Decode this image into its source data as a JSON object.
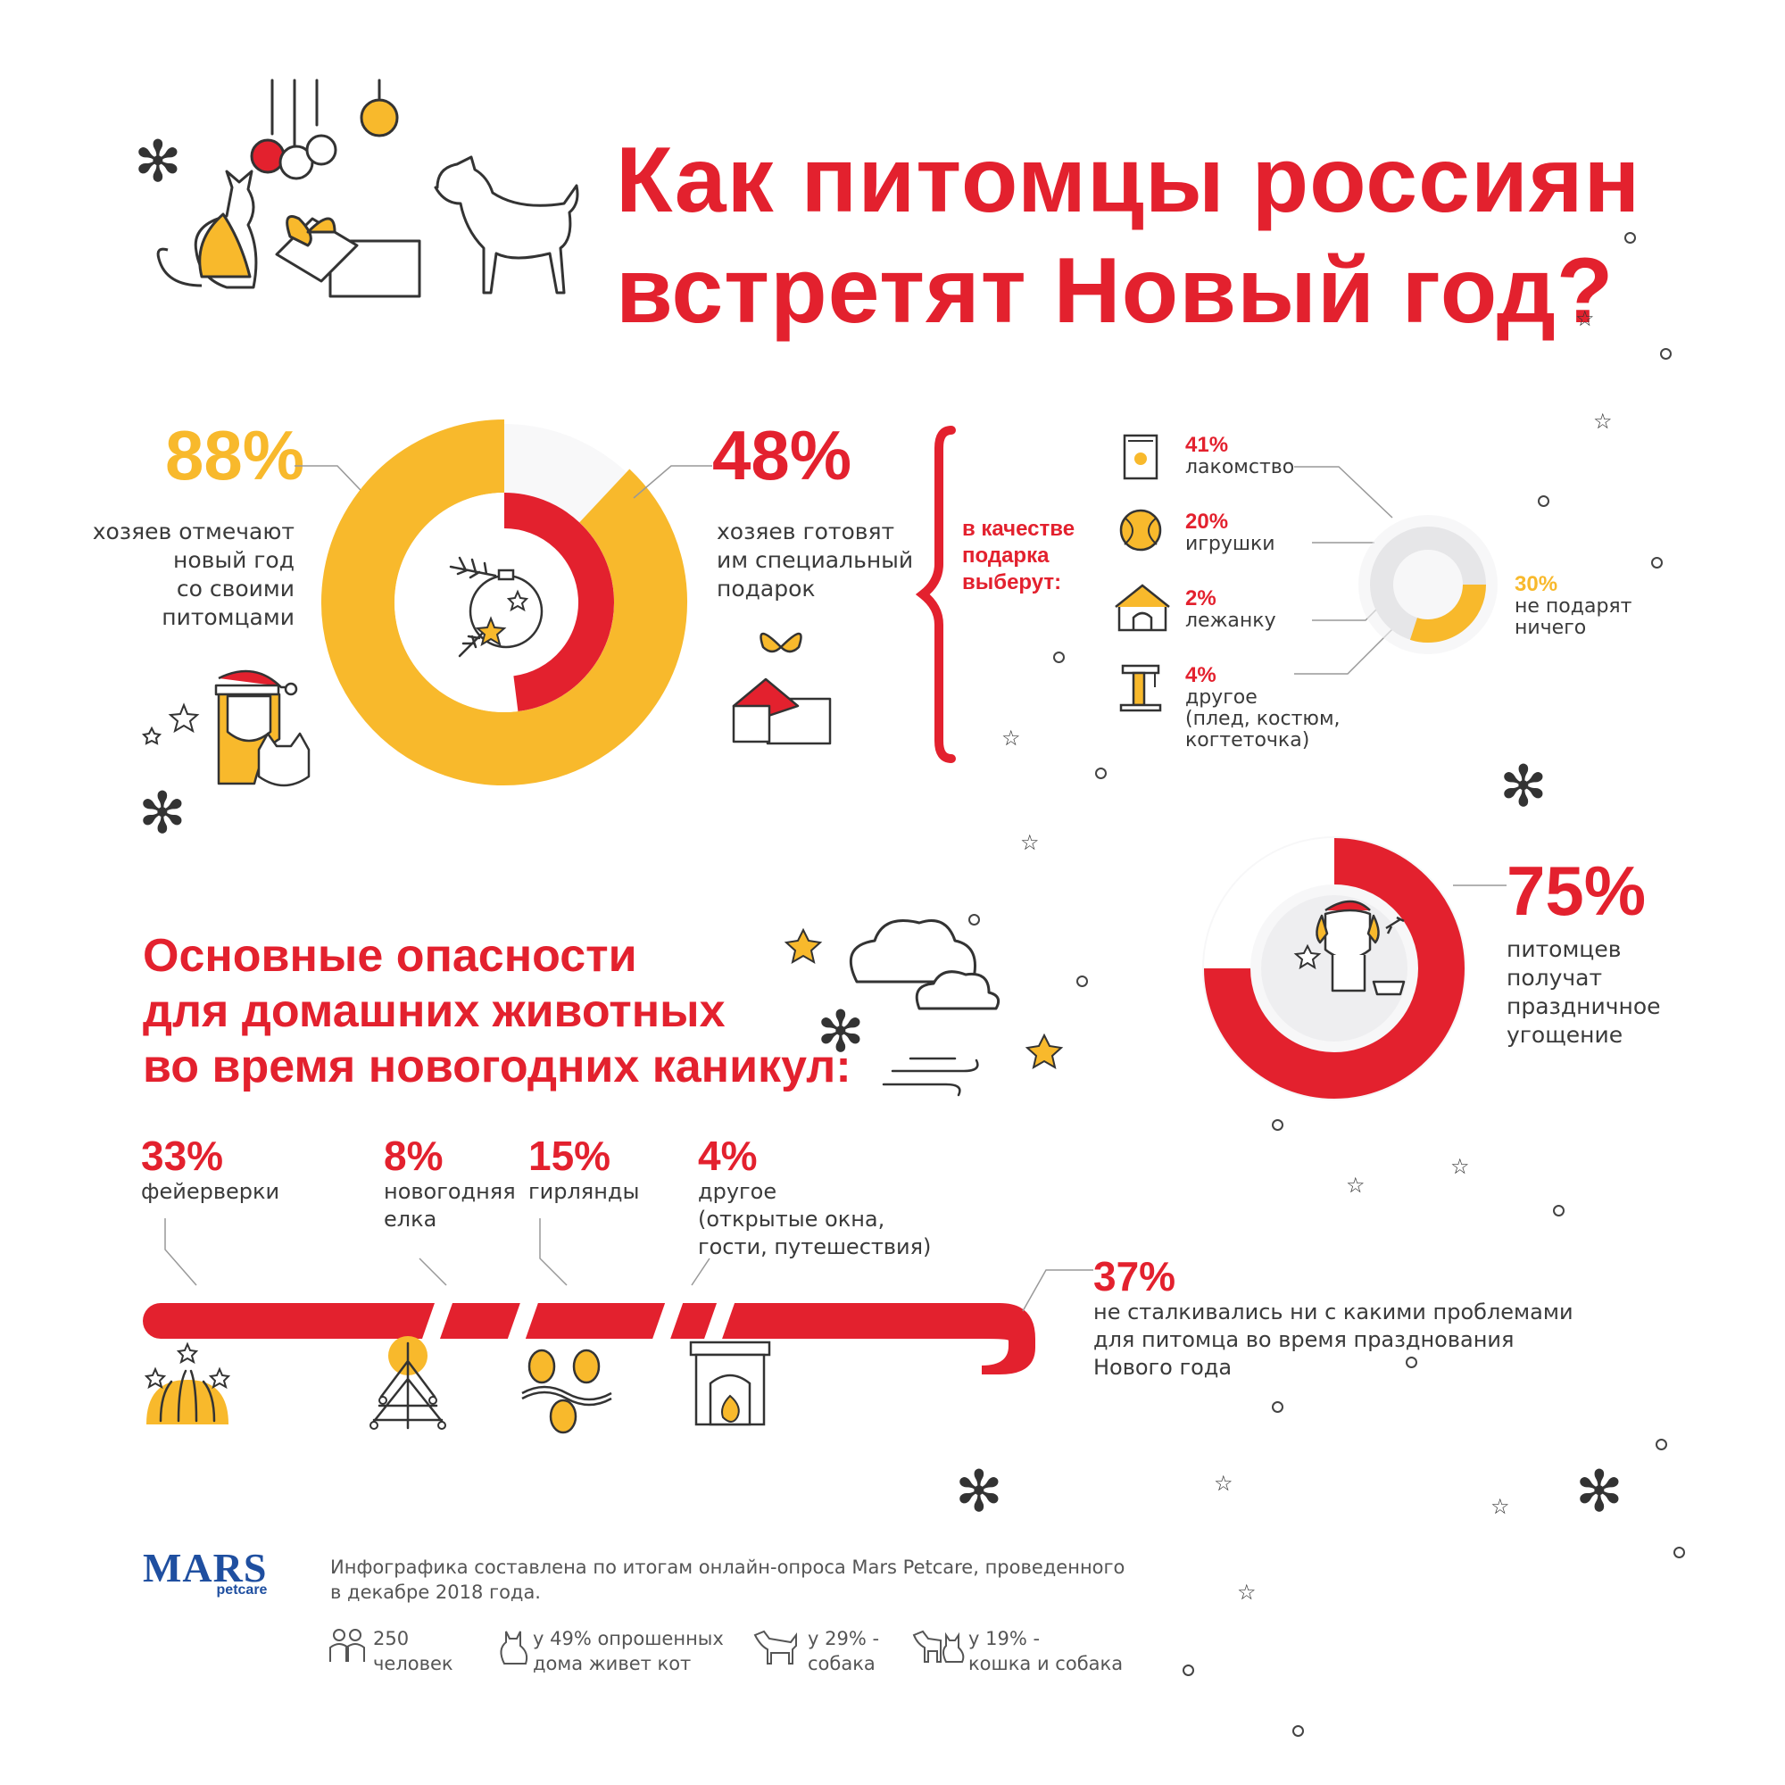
{
  "title": {
    "line1": "Как питомцы россиян",
    "line2": "встретят Новый год?"
  },
  "stat_celebrate": {
    "value": "88%",
    "line1": "хозяев отмечают",
    "line2": "новый год",
    "line3": "со своими",
    "line4": "питомцами"
  },
  "stat_gift": {
    "value": "48%",
    "line1": "хозяев готовят",
    "line2": "им специальный",
    "line3": "подарок"
  },
  "gift_choice": {
    "header_line1": "в качестве",
    "header_line2": "подарка",
    "header_line3": "выберут:",
    "items": [
      {
        "value": "41%",
        "label": "лакомство",
        "icon": "treat-bag-icon"
      },
      {
        "value": "20%",
        "label": "игрушки",
        "icon": "ball-icon"
      },
      {
        "value": "2%",
        "label": "лежанку",
        "icon": "doghouse-icon"
      },
      {
        "value": "4%",
        "label": "другое",
        "label2": "(плед, костюм,",
        "label3": "когтеточка)",
        "icon": "scratching-post-icon"
      }
    ],
    "no_gift": {
      "value": "30%",
      "line1": "не подарят",
      "line2": "ничего"
    }
  },
  "stat_treat": {
    "value": "75%",
    "line1": "питомцев",
    "line2": "получат",
    "line3": "праздничное",
    "line4": "угощение"
  },
  "dangers": {
    "title_line1": "Основные опасности",
    "title_line2": "для домашних животных",
    "title_line3": "во время новогодних каникул:",
    "items": [
      {
        "value": "33%",
        "line1": "фейерверки",
        "line2": "",
        "line3": "",
        "icon": "fireworks-icon"
      },
      {
        "value": "8%",
        "line1": "новогодняя",
        "line2": "елка",
        "line3": "",
        "icon": "christmas-tree-icon"
      },
      {
        "value": "15%",
        "line1": "гирлянды",
        "line2": "",
        "line3": "",
        "icon": "garland-icon"
      },
      {
        "value": "4%",
        "line1": "другое",
        "line2": "(открытые окна,",
        "line3": "гости, путешествия)",
        "icon": "fireplace-icon"
      }
    ],
    "none": {
      "value": "37%",
      "line1": "не сталкивались ни с какими проблемами",
      "line2": "для питомца во время празднования",
      "line3": "Нового года"
    }
  },
  "footer": {
    "logo": "MARS",
    "logo_sub": "petcare",
    "note_line1": "Инфографика составлена по итогам онлайн-опроса Mars Petcare, проведенного",
    "note_line2": "в декабре 2018 года.",
    "facts": [
      {
        "line1": "250",
        "line2": "человек",
        "icon": "people-icon"
      },
      {
        "line1": "у 49% опрошенных",
        "line2": "дома живет кот",
        "icon": "cat-icon"
      },
      {
        "line1": "у 29% -",
        "line2": "собака",
        "icon": "dog-icon"
      },
      {
        "line1": "у 19% -",
        "line2": "кошка и собака",
        "icon": "cat-and-dog-icon"
      }
    ]
  },
  "colors": {
    "red": "#e3212e",
    "yellow": "#f8b92c",
    "gray": "#e6e6e8",
    "text": "#3a3a3a"
  },
  "chart_data": [
    {
      "type": "pie",
      "title": "",
      "labels": [
        "хозяев отмечают новый год со своими питомцами"
      ],
      "values": [
        88
      ]
    },
    {
      "type": "pie",
      "title": "",
      "labels": [
        "хозяев готовят им специальный подарок"
      ],
      "values": [
        48
      ]
    },
    {
      "type": "pie",
      "title": "",
      "labels": [
        "лакомство",
        "игрушки",
        "лежанку",
        "другое",
        "не подарят ничего"
      ],
      "values": [
        41,
        20,
        2,
        4,
        30
      ]
    },
    {
      "type": "pie",
      "title": "",
      "labels": [
        "питомцев получат праздничное угощение"
      ],
      "values": [
        75
      ]
    },
    {
      "type": "bar",
      "title": "",
      "categories": [
        "фейерверки",
        "новогодняя елка",
        "гирлянды",
        "другое",
        "не сталкивались ни с какими проблемами"
      ],
      "values": [
        33,
        8,
        15,
        4,
        37
      ]
    }
  ]
}
